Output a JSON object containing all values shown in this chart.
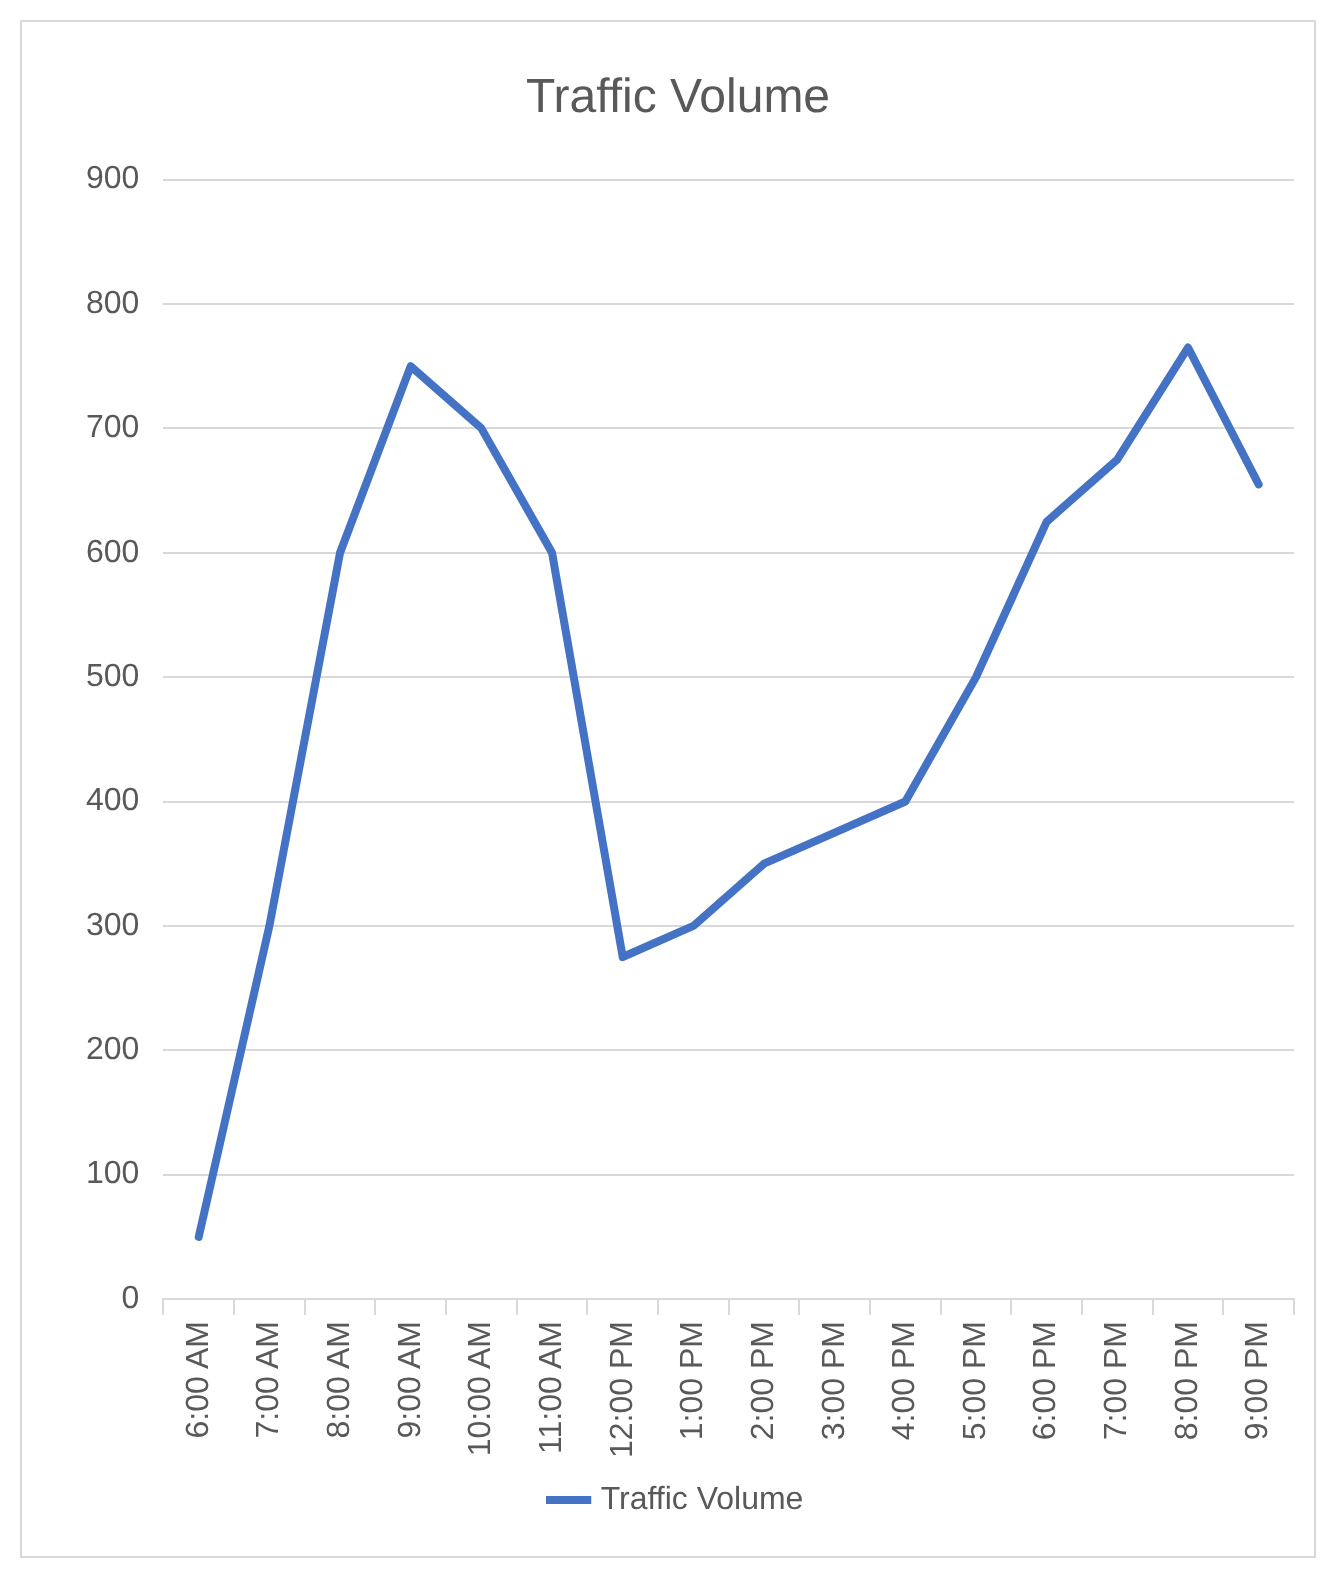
{
  "chart_data": {
    "type": "line",
    "title": "Traffic Volume",
    "categories": [
      "6:00 AM",
      "7:00 AM",
      "8:00 AM",
      "9:00 AM",
      "10:00 AM",
      "11:00 AM",
      "12:00 PM",
      "1:00 PM",
      "2:00 PM",
      "3:00 PM",
      "4:00 PM",
      "5:00 PM",
      "6:00 PM",
      "7:00 PM",
      "8:00 PM",
      "9:00 PM"
    ],
    "series": [
      {
        "name": "Traffic Volume",
        "color": "#4472c4",
        "values": [
          50,
          300,
          600,
          750,
          700,
          600,
          275,
          300,
          350,
          375,
          400,
          500,
          625,
          675,
          765,
          655
        ]
      }
    ],
    "ylim": [
      0,
      900
    ],
    "yticks": [
      0,
      100,
      200,
      300,
      400,
      500,
      600,
      700,
      800,
      900
    ],
    "grid": "y",
    "legend": "bottom",
    "marker": "none",
    "line_style": "solid"
  }
}
